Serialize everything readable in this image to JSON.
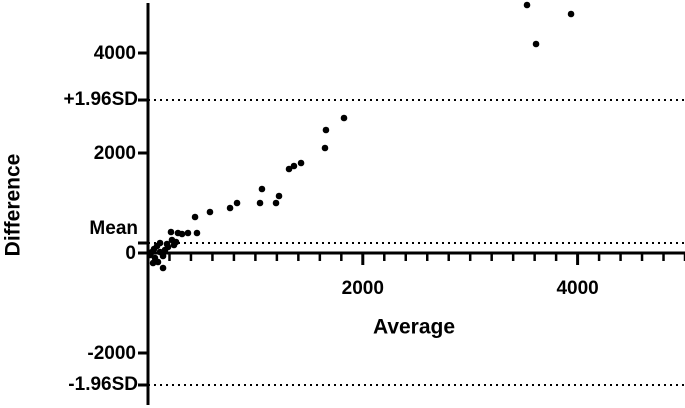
{
  "chart_data": {
    "type": "scatter",
    "x_label": "Average",
    "y_label": "Difference",
    "xlim": [
      0,
      5000
    ],
    "ylim": [
      -3000,
      5000
    ],
    "xticks": [
      2000,
      4000
    ],
    "x_minor_ticks": [
      0,
      200,
      400,
      600,
      800,
      1000,
      1200,
      1400,
      1600,
      1800,
      2200,
      2400,
      2600,
      2800,
      3000,
      3200,
      3400,
      3600,
      3800,
      4200,
      4400,
      4600,
      4800,
      5000
    ],
    "yticks": [
      -2000,
      0,
      2000,
      4000
    ],
    "hlines": [
      {
        "value": -2640,
        "label": "-1.96SD"
      },
      {
        "value": 200,
        "label": "Mean"
      },
      {
        "value": 3060,
        "label": "+1.96SD"
      }
    ],
    "color": "#000000",
    "x": [
      3529,
      3939,
      3613,
      1825,
      1657,
      1648,
      1425,
      1359,
      1313,
      1061,
      1220,
      1043,
      1192,
      829,
      764,
      577,
      438,
      456,
      372,
      317,
      279,
      214,
      223,
      261,
      242,
      177,
      112,
      84,
      56,
      37,
      19,
      65,
      93,
      140,
      47,
      112,
      158,
      186,
      140
    ],
    "values": [
      4960,
      4780,
      4180,
      2700,
      2460,
      2100,
      1800,
      1740,
      1680,
      1280,
      1140,
      1000,
      1000,
      1000,
      900,
      820,
      720,
      400,
      400,
      380,
      400,
      420,
      260,
      220,
      160,
      180,
      200,
      140,
      80,
      20,
      -40,
      -100,
      -180,
      -300,
      -200,
      20,
      60,
      120,
      -60
    ]
  }
}
